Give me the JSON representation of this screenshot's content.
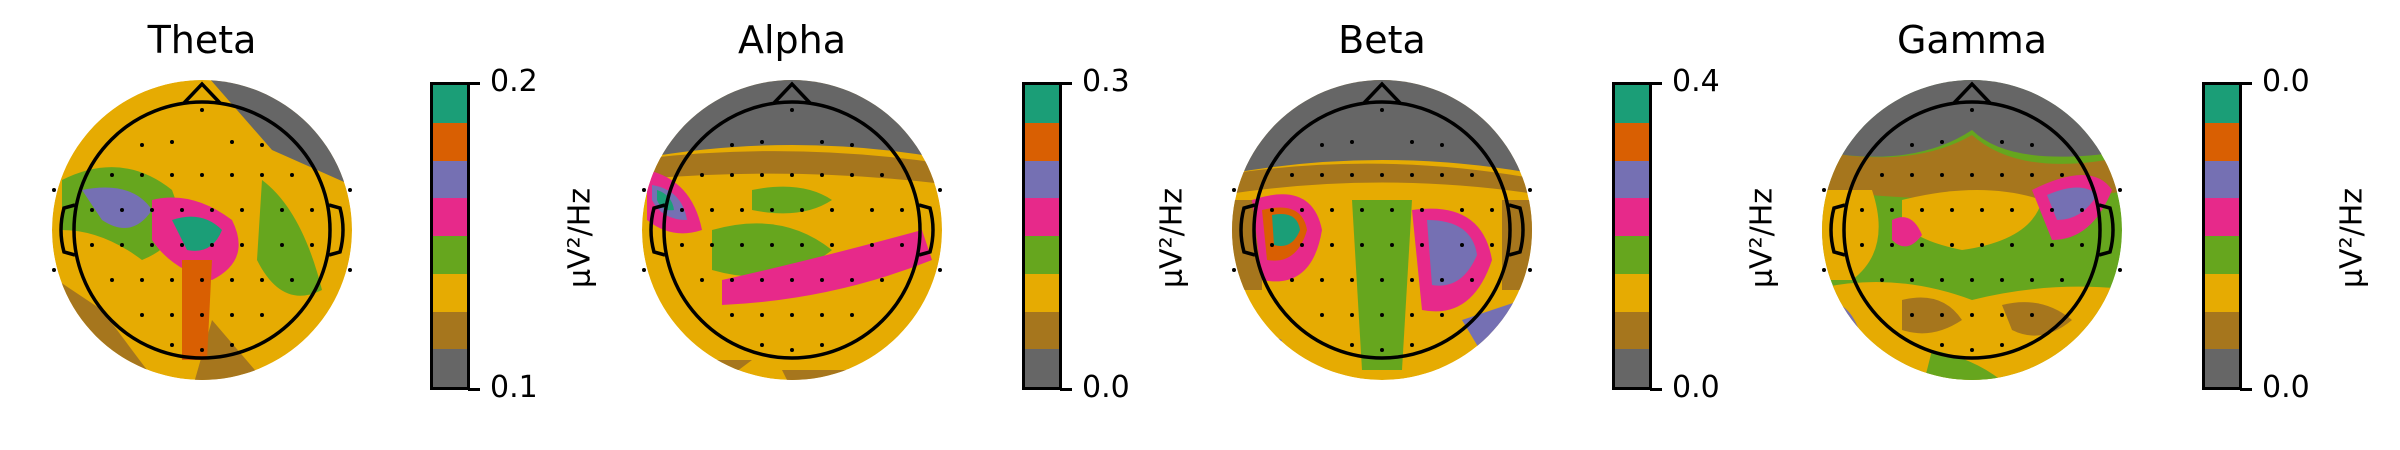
{
  "palette": [
    "#1b9e77",
    "#d95f02",
    "#7570b3",
    "#e7298a",
    "#66a61e",
    "#e6ab02",
    "#a6761d",
    "#666666"
  ],
  "colorbar_order_top_to_bottom": [
    "#1b9e77",
    "#d95f02",
    "#7570b3",
    "#e7298a",
    "#66a61e",
    "#e6ab02",
    "#a6761d",
    "#666666"
  ],
  "unit_label": "µV²/Hz",
  "panels": [
    {
      "title": "Theta",
      "cbar_max": "0.2",
      "cbar_min": "0.1"
    },
    {
      "title": "Alpha",
      "cbar_max": "0.3",
      "cbar_min": "0.0"
    },
    {
      "title": "Beta",
      "cbar_max": "0.4",
      "cbar_min": "0.0"
    },
    {
      "title": "Gamma",
      "cbar_max": "0.0",
      "cbar_min": "0.0"
    }
  ]
}
